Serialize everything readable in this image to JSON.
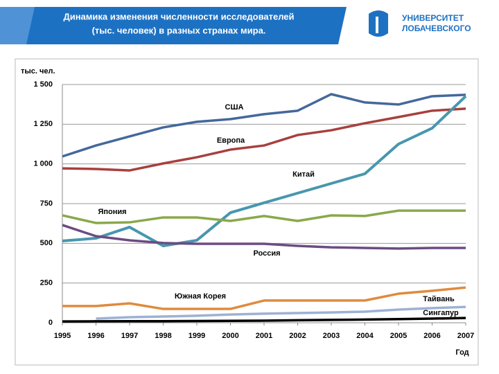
{
  "header": {
    "title_lines": [
      "Динамика изменения численности исследователей",
      "(тыс. человек) в разных странах мира."
    ],
    "logo_lines": [
      "УНИВЕРСИТЕТ",
      "ЛОБАЧЕВСКОГО"
    ]
  },
  "chart_data": {
    "type": "line",
    "ylabel": "тыс. чел.",
    "xlabel": "Год",
    "x": [
      1995,
      1996,
      1997,
      1998,
      1999,
      2000,
      2001,
      2002,
      2003,
      2004,
      2005,
      2006,
      2007
    ],
    "xlim": [
      1995,
      2007
    ],
    "xticks": [
      1995,
      1996,
      1997,
      1998,
      1999,
      2000,
      2001,
      2002,
      2003,
      2004,
      2005,
      2006,
      2007
    ],
    "ylim": [
      0,
      1500
    ],
    "yticks": [
      0,
      250,
      500,
      750,
      {
        "value": 1000,
        "label": "1 000"
      },
      {
        "value": 1250,
        "label": "1 250"
      },
      {
        "value": 1500,
        "label": "1 500"
      }
    ],
    "grid": true,
    "series": [
      {
        "name": "США",
        "color": "#44689c",
        "values": [
          1047,
          1116,
          1173,
          1230,
          1265,
          1282,
          1313,
          1335,
          1439,
          1387,
          1374,
          1426,
          1435
        ]
      },
      {
        "name": "Европа",
        "color": "#a8403e",
        "values": [
          972,
          968,
          959,
          1003,
          1042,
          1090,
          1116,
          1182,
          1212,
          1256,
          1295,
          1335,
          1348
        ]
      },
      {
        "name": "Китай",
        "color": "#4797ae",
        "values": [
          515,
          532,
          602,
          484,
          519,
          693,
          755,
          816,
          877,
          938,
          1125,
          1225,
          1426
        ]
      },
      {
        "name": "Япония",
        "color": "#8aa84a",
        "values": [
          676,
          628,
          632,
          663,
          663,
          641,
          672,
          641,
          676,
          672,
          706,
          706,
          706
        ]
      },
      {
        "name": "Россия",
        "color": "#6b4c82",
        "values": [
          615,
          545,
          519,
          502,
          497,
          497,
          497,
          484,
          475,
          471,
          467,
          471,
          471
        ]
      },
      {
        "name": "Южная Корея",
        "color": "#e08a3c",
        "values": [
          105,
          105,
          122,
          87,
          87,
          87,
          140,
          140,
          140,
          140,
          183,
          201,
          222
        ]
      },
      {
        "name": "Тайвань",
        "color": "#9db1d3",
        "values": [
          null,
          26,
          35,
          39,
          44,
          52,
          57,
          61,
          65,
          70,
          83,
          92,
          100
        ]
      },
      {
        "name": "Сингапур",
        "color": "#000000",
        "values": [
          8,
          9,
          10,
          10,
          11,
          12,
          13,
          16,
          18,
          20,
          23,
          26,
          30
        ]
      }
    ]
  }
}
